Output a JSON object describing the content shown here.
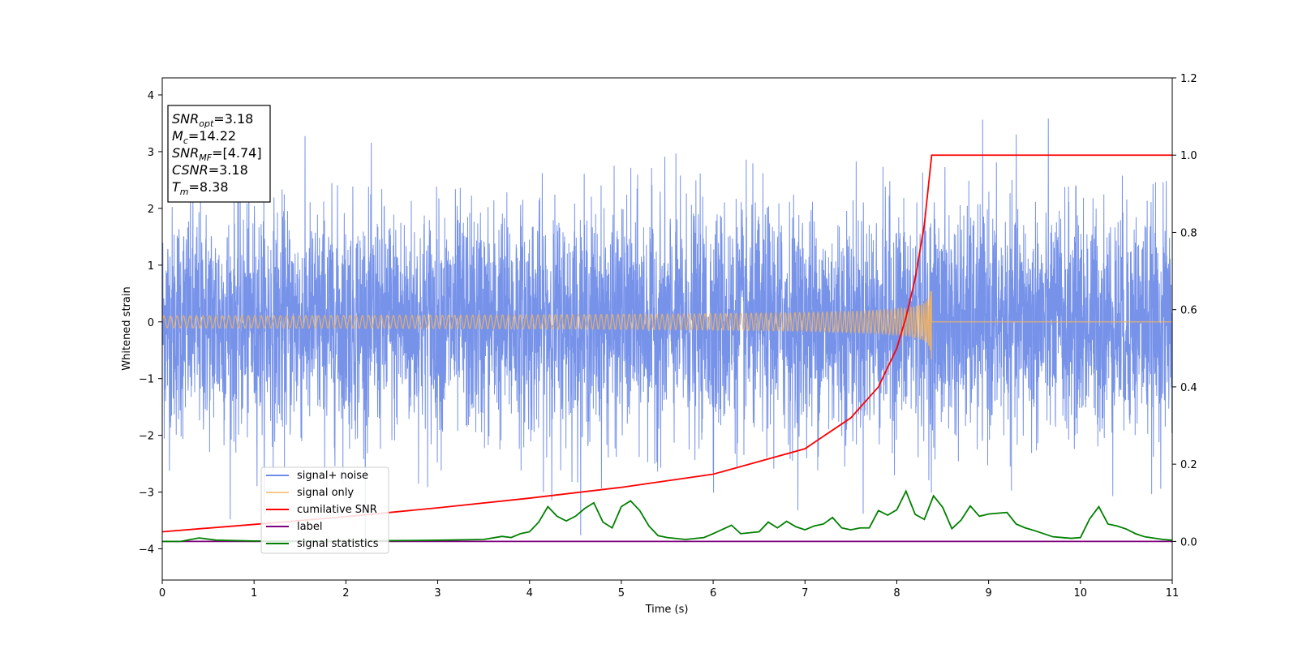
{
  "chart_data": {
    "type": "line",
    "xlabel": "Time (s)",
    "ylabel_left": "Whitened strain",
    "ylabel_right": "",
    "xlim": [
      0,
      11
    ],
    "ylim_left": [
      -4.55,
      4.3
    ],
    "ylim_right": [
      -0.1,
      1.2
    ],
    "x_ticks": [
      0,
      1,
      2,
      3,
      4,
      5,
      6,
      7,
      8,
      9,
      10,
      11
    ],
    "y_ticks_left": [
      4,
      3,
      2,
      1,
      0,
      -1,
      -2,
      -3,
      -4
    ],
    "y_ticks_right": [
      1.2,
      1.0,
      0.8,
      0.6,
      0.4,
      0.2,
      0.0
    ],
    "y_tick_labels_left": [
      "4",
      "3",
      "2",
      "1",
      "0",
      "−1",
      "−2",
      "−3",
      "−4"
    ],
    "y_tick_labels_right": [
      "1.2",
      "1.0",
      "0.8",
      "0.6",
      "0.4",
      "0.2",
      "0.0"
    ],
    "legend_position": "lower-left",
    "grid": false,
    "series": [
      {
        "name": "signal+ noise",
        "color": "#6f8ce8",
        "axis": "left",
        "description_values": {
          "mean": 0,
          "std": 1,
          "range": [
            -4.2,
            3.92
          ]
        }
      },
      {
        "name": "signal only",
        "color": "#f4b35e",
        "axis": "left",
        "chirp": {
          "start": 0,
          "merger": 8.38,
          "peak_amplitude": 0.72
        }
      },
      {
        "name": "cumilative SNR",
        "color": "#ff0000",
        "axis": "right",
        "x": [
          0,
          1,
          2,
          3,
          4,
          5,
          6,
          7,
          7.5,
          7.8,
          8.0,
          8.1,
          8.2,
          8.3,
          8.38,
          8.4,
          11
        ],
        "y": [
          0.025,
          0.044,
          0.064,
          0.087,
          0.112,
          0.14,
          0.174,
          0.24,
          0.32,
          0.4,
          0.5,
          0.58,
          0.68,
          0.82,
          1.0,
          1.0,
          1.0
        ]
      },
      {
        "name": "label",
        "color": "#800080",
        "axis": "right",
        "x": [
          0,
          11
        ],
        "y": [
          0,
          0
        ]
      },
      {
        "name": "signal statistics",
        "color": "#008000",
        "axis": "right",
        "x": [
          0,
          0.2,
          0.4,
          0.6,
          0.8,
          1.0,
          1.5,
          2.0,
          2.5,
          3.0,
          3.5,
          3.7,
          3.8,
          3.9,
          4.0,
          4.1,
          4.2,
          4.3,
          4.4,
          4.5,
          4.6,
          4.7,
          4.8,
          4.9,
          5.0,
          5.1,
          5.2,
          5.3,
          5.4,
          5.5,
          5.7,
          5.9,
          6.0,
          6.2,
          6.3,
          6.5,
          6.6,
          6.7,
          6.8,
          6.9,
          7.0,
          7.1,
          7.2,
          7.3,
          7.4,
          7.5,
          7.6,
          7.7,
          7.8,
          7.9,
          8.0,
          8.1,
          8.2,
          8.3,
          8.4,
          8.5,
          8.6,
          8.7,
          8.8,
          8.9,
          9.0,
          9.1,
          9.2,
          9.3,
          9.4,
          9.5,
          9.7,
          9.9,
          10.0,
          10.1,
          10.2,
          10.3,
          10.4,
          10.5,
          10.6,
          10.7,
          10.9,
          11.0
        ],
        "y": [
          0.0,
          0.0,
          0.009,
          0.003,
          0.002,
          0.001,
          0.001,
          0.001,
          0.002,
          0.003,
          0.005,
          0.013,
          0.01,
          0.02,
          0.025,
          0.05,
          0.09,
          0.065,
          0.053,
          0.065,
          0.085,
          0.1,
          0.05,
          0.035,
          0.09,
          0.105,
          0.08,
          0.04,
          0.015,
          0.01,
          0.005,
          0.01,
          0.02,
          0.042,
          0.02,
          0.025,
          0.05,
          0.035,
          0.052,
          0.038,
          0.03,
          0.04,
          0.045,
          0.062,
          0.035,
          0.03,
          0.035,
          0.035,
          0.08,
          0.068,
          0.082,
          0.13,
          0.07,
          0.057,
          0.118,
          0.088,
          0.033,
          0.055,
          0.092,
          0.065,
          0.071,
          0.073,
          0.075,
          0.045,
          0.035,
          0.028,
          0.012,
          0.008,
          0.01,
          0.058,
          0.09,
          0.045,
          0.04,
          0.032,
          0.02,
          0.012,
          0.005,
          0.003
        ]
      }
    ],
    "annotation_box": [
      {
        "base": "SNR",
        "sub": "opt",
        "value": "=3.18"
      },
      {
        "base": "M",
        "sub": "c",
        "value": "=14.22"
      },
      {
        "base": "SNR",
        "sub": "MF",
        "value": "=[4.74]"
      },
      {
        "base": "CSNR",
        "sub": "",
        "value": "=3.18"
      },
      {
        "base": "T",
        "sub": "m",
        "value": "=8.38"
      }
    ]
  }
}
